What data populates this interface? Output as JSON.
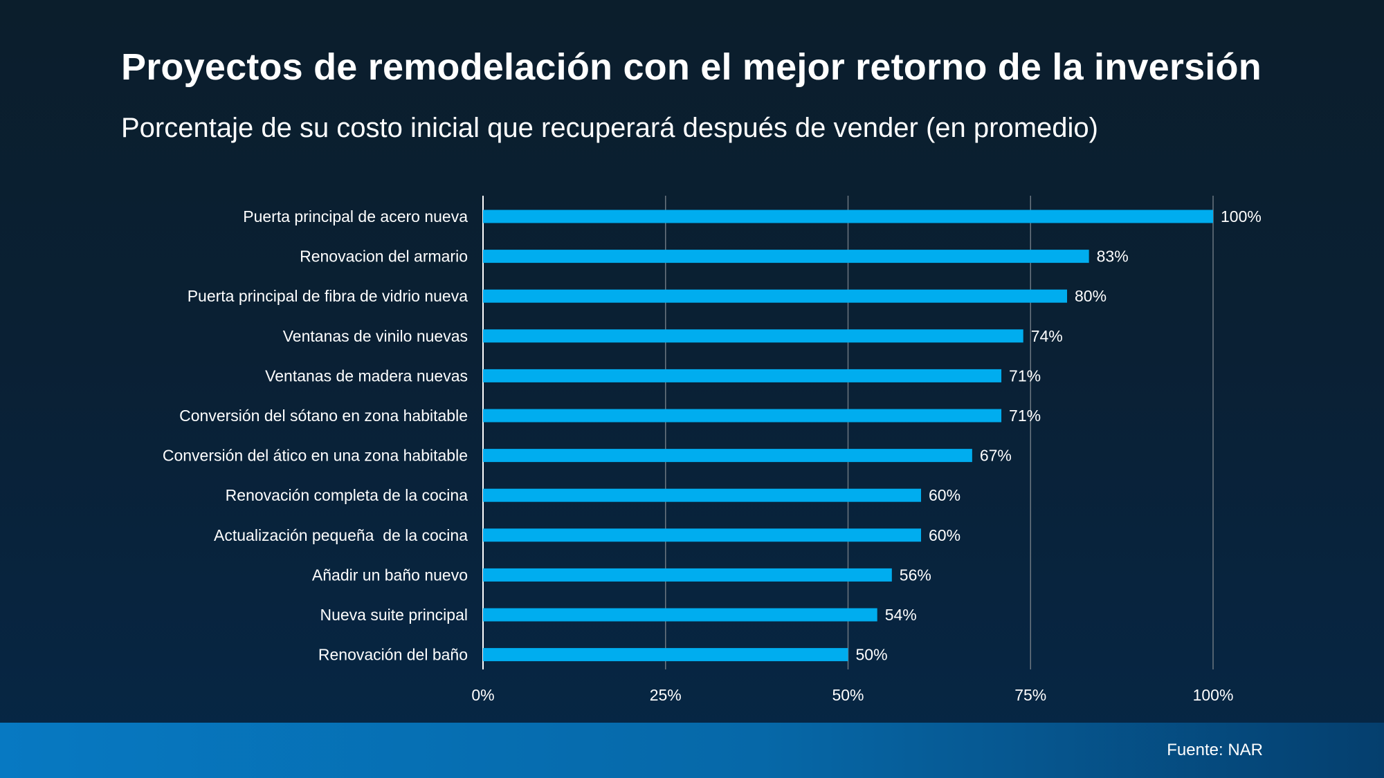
{
  "title": "Proyectos de remodelación con el mejor retorno de la inversión",
  "subtitle": "Porcentaje de su costo inicial que recuperará después de vender (en promedio)",
  "source": "Fuente: NAR",
  "colors": {
    "bar": "#00adef",
    "gridline": "#6b7680",
    "axis": "#ffffff",
    "text": "#ffffff"
  },
  "chart_data": {
    "type": "bar",
    "orientation": "horizontal",
    "title": "Proyectos de remodelación con el mejor retorno de la inversión",
    "subtitle": "Porcentaje de su costo inicial que recuperará después de vender (en promedio)",
    "xlabel": "",
    "ylabel": "",
    "xlim": [
      0,
      100
    ],
    "xticks": [
      0,
      25,
      50,
      75,
      100
    ],
    "tick_labels": [
      "0%",
      "25%",
      "50%",
      "75%",
      "100%"
    ],
    "grid": true,
    "legend": "none",
    "categories": [
      "Puerta principal de acero nueva",
      "Renovacion del armario",
      "Puerta principal de fibra de vidrio nueva",
      "Ventanas de vinilo nuevas",
      "Ventanas de madera nuevas",
      "Conversión del sótano en zona habitable",
      "Conversión del ático en una zona habitable",
      "Renovación completa de la cocina",
      "Actualización pequeña  de la cocina",
      "Añadir un baño nuevo",
      "Nueva suite principal",
      "Renovación del baño"
    ],
    "values": [
      100,
      83,
      80,
      74,
      71,
      71,
      67,
      60,
      60,
      56,
      54,
      50
    ],
    "value_labels": [
      "100%",
      "83%",
      "80%",
      "74%",
      "71%",
      "71%",
      "67%",
      "60%",
      "60%",
      "56%",
      "54%",
      "50%"
    ]
  }
}
